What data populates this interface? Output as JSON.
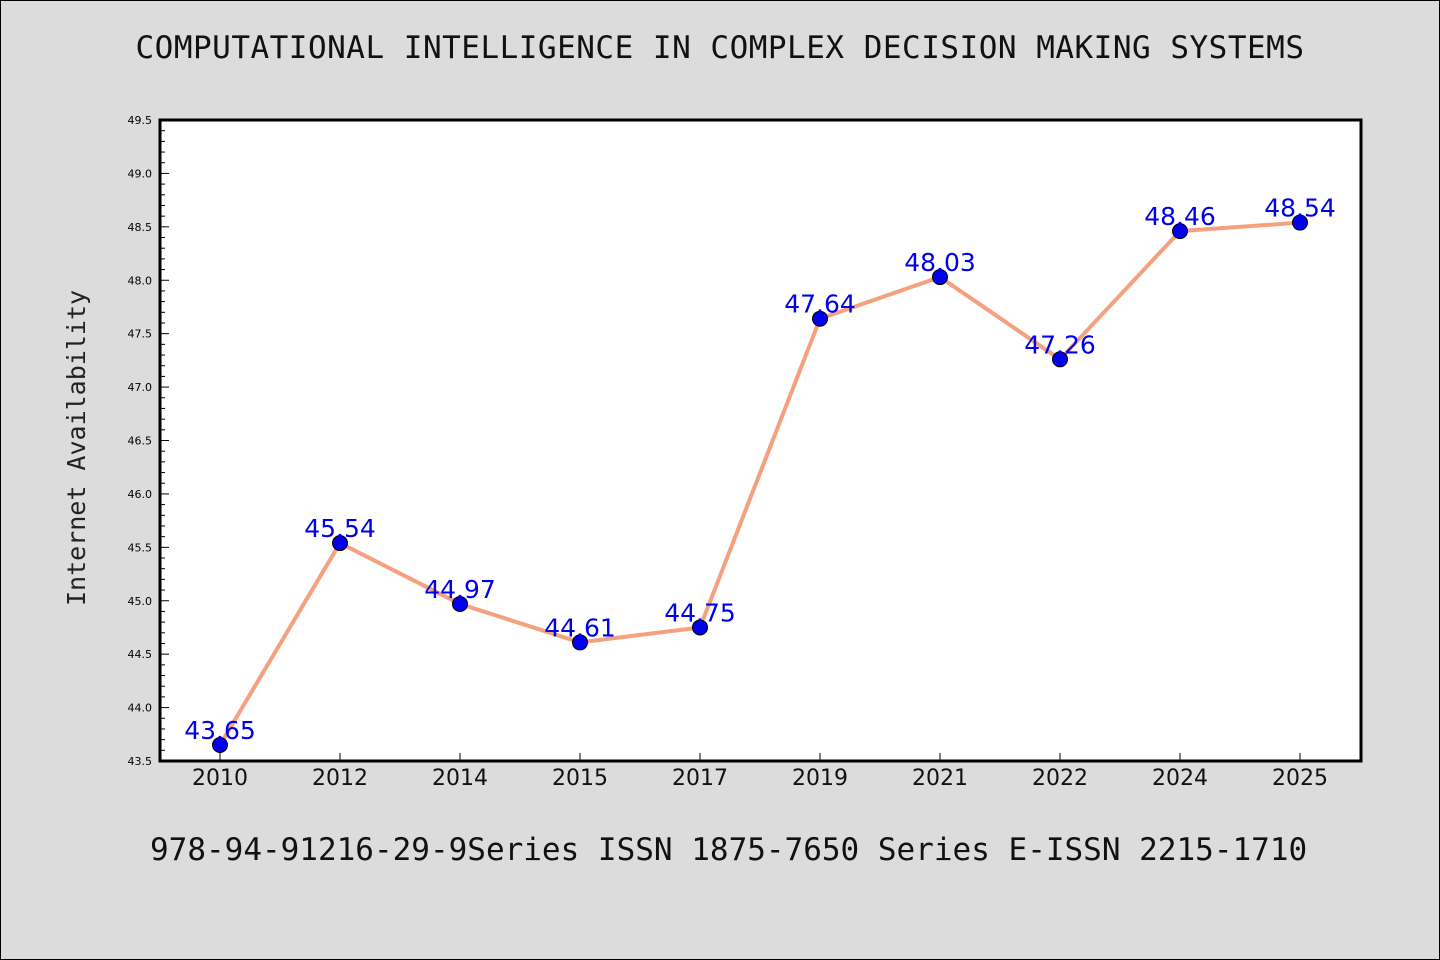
{
  "page": {
    "title": "COMPUTATIONAL INTELLIGENCE IN COMPLEX DECISION MAKING SYSTEMS",
    "footer": "978-94-91216-29-9Series ISSN 1875-7650 Series E-ISSN 2215-1710"
  },
  "chart_data": {
    "type": "line",
    "title": "COMPUTATIONAL INTELLIGENCE IN COMPLEX DECISION MAKING SYSTEMS",
    "xlabel": "",
    "ylabel": "Internet Availability",
    "categories": [
      "2010",
      "2012",
      "2014",
      "2015",
      "2017",
      "2019",
      "2021",
      "2022",
      "2024",
      "2025"
    ],
    "series": [
      {
        "values": [
          43.65,
          45.54,
          44.97,
          44.61,
          44.75,
          47.64,
          48.03,
          47.26,
          48.46,
          48.54
        ],
        "labels": [
          "43.65",
          "45.54",
          "44.97",
          "44.61",
          "44.75",
          "47.64",
          "48.03",
          "47.26",
          "48.46",
          "48.54"
        ],
        "line_color": "#f5a07f",
        "marker_color": "#0000ee"
      }
    ],
    "ylim": [
      43.5,
      49.5
    ],
    "yticks": [
      "43.5",
      "44.0",
      "44.5",
      "45.0",
      "45.5",
      "46.0",
      "46.5",
      "47.0",
      "47.5",
      "48.0",
      "48.5",
      "49.0",
      "49.5"
    ],
    "grid": false,
    "label_color": "#0000ee"
  }
}
